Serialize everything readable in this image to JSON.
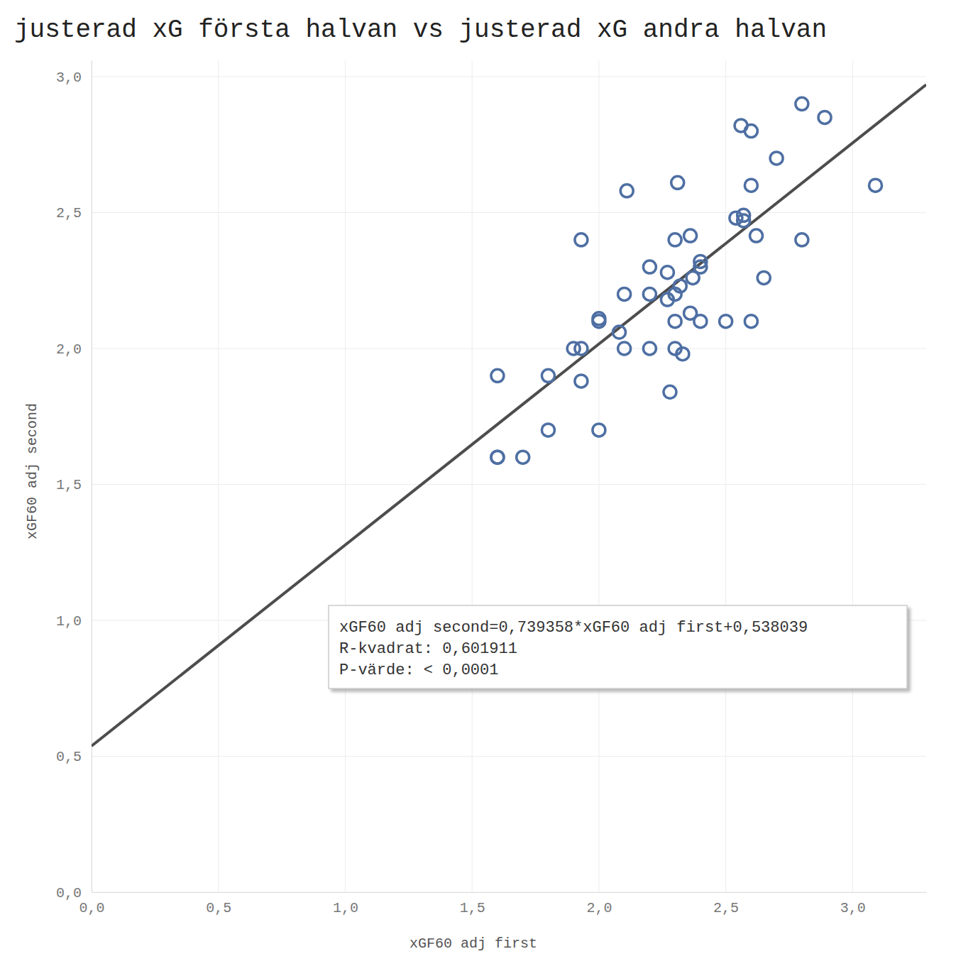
{
  "chart_data": {
    "type": "scatter",
    "title": "justerad xG första halvan vs justerad xG andra halvan",
    "x_label": "xGF60 adj first",
    "y_label": "xGF60 adj second",
    "color": "#4e6fa3",
    "marker": "circle-open",
    "grid": true,
    "xlim": [
      0,
      3.29
    ],
    "ylim": [
      0,
      3.06
    ],
    "xticks": [
      {
        "value": 0,
        "label": "0,0"
      },
      {
        "value": 0.5,
        "label": "0,5"
      },
      {
        "value": 1,
        "label": "1,0"
      },
      {
        "value": 1.5,
        "label": "1,5"
      },
      {
        "value": 2,
        "label": "2,0"
      },
      {
        "value": 2.5,
        "label": "2,5"
      },
      {
        "value": 3,
        "label": "3,0"
      }
    ],
    "yticks": [
      {
        "value": 0,
        "label": "0,0"
      },
      {
        "value": 0.5,
        "label": "0,5"
      },
      {
        "value": 1,
        "label": "1,0"
      },
      {
        "value": 1.5,
        "label": "1,5"
      },
      {
        "value": 2,
        "label": "2,0"
      },
      {
        "value": 2.5,
        "label": "2,5"
      },
      {
        "value": 3,
        "label": "3,0"
      }
    ],
    "x": [
      1.6,
      1.6,
      1.6,
      1.7,
      1.8,
      1.8,
      1.93,
      1.93,
      1.9,
      1.93,
      2.0,
      2.0,
      2.0,
      2.08,
      2.1,
      2.1,
      2.11,
      2.2,
      2.2,
      2.2,
      2.27,
      2.27,
      2.28,
      2.3,
      2.3,
      2.3,
      2.3,
      2.31,
      2.32,
      2.33,
      2.36,
      2.36,
      2.37,
      2.4,
      2.4,
      2.4,
      2.5,
      2.54,
      2.56,
      2.57,
      2.57,
      2.6,
      2.6,
      2.6,
      2.62,
      2.65,
      2.7,
      2.8,
      2.8,
      2.89,
      3.09
    ],
    "values": [
      1.9,
      1.6,
      1.6,
      1.6,
      1.9,
      1.7,
      2.4,
      1.88,
      2.0,
      2.0,
      2.11,
      2.1,
      1.7,
      2.06,
      2.2,
      2.0,
      2.58,
      2.3,
      2.2,
      2.0,
      2.28,
      2.18,
      1.84,
      2.4,
      2.2,
      2.1,
      2.0,
      2.61,
      2.23,
      1.98,
      2.415,
      2.13,
      2.26,
      2.32,
      2.3,
      2.1,
      2.1,
      2.48,
      2.82,
      2.49,
      2.47,
      2.8,
      2.6,
      2.1,
      2.415,
      2.26,
      2.7,
      2.9,
      2.4,
      2.85,
      2.6
    ],
    "trendline": {
      "slope": 0.739358,
      "intercept": 0.538039,
      "color": "#4d4d4d",
      "labels": [
        "xGF60 adj second=0,739358*xGF60 adj first+0,538039",
        "R-kvadrat: 0,601911",
        "P-värde: < 0,0001"
      ]
    }
  }
}
